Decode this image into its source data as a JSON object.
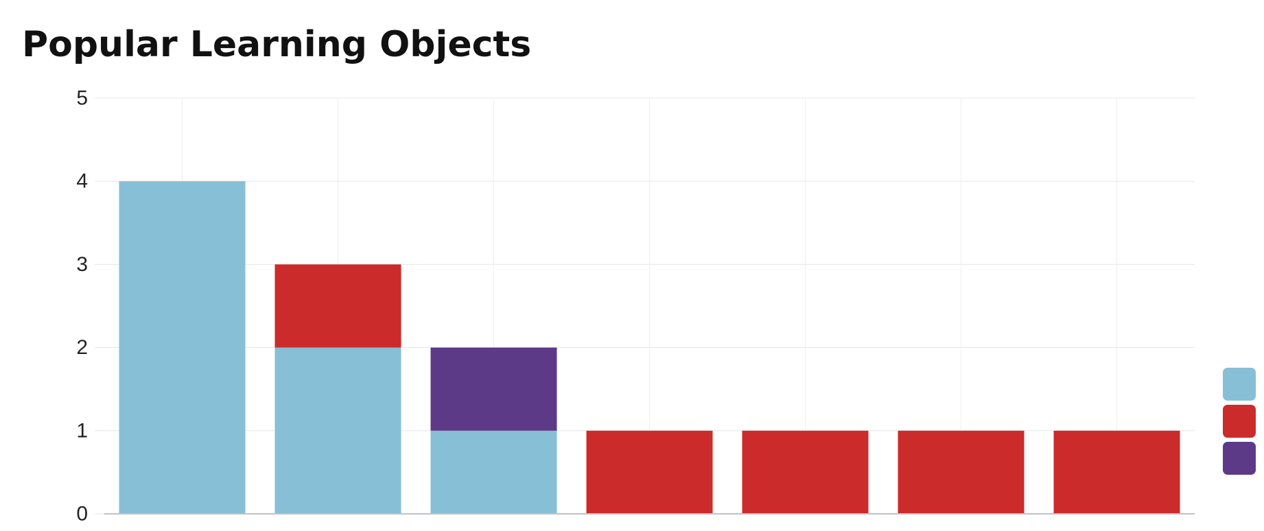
{
  "title": "Popular Learning Objects",
  "chart_data": {
    "type": "bar",
    "stacked": true,
    "title": "Popular Learning Objects",
    "xlabel": "",
    "ylabel": "",
    "ylim": [
      0,
      5
    ],
    "yticks": [
      0,
      1,
      2,
      3,
      4,
      5
    ],
    "grid": true,
    "legend_position": "right",
    "categories": [
      "",
      "",
      "",
      "",
      "",
      "",
      ""
    ],
    "series": [
      {
        "color": "#87bfd6",
        "values": [
          4,
          2,
          1,
          0,
          0,
          0,
          0
        ]
      },
      {
        "color": "#cc2b2b",
        "values": [
          0,
          1,
          0,
          1,
          1,
          1,
          1
        ]
      },
      {
        "color": "#5c3a88",
        "values": [
          0,
          0,
          1,
          0,
          0,
          0,
          0
        ]
      }
    ]
  }
}
